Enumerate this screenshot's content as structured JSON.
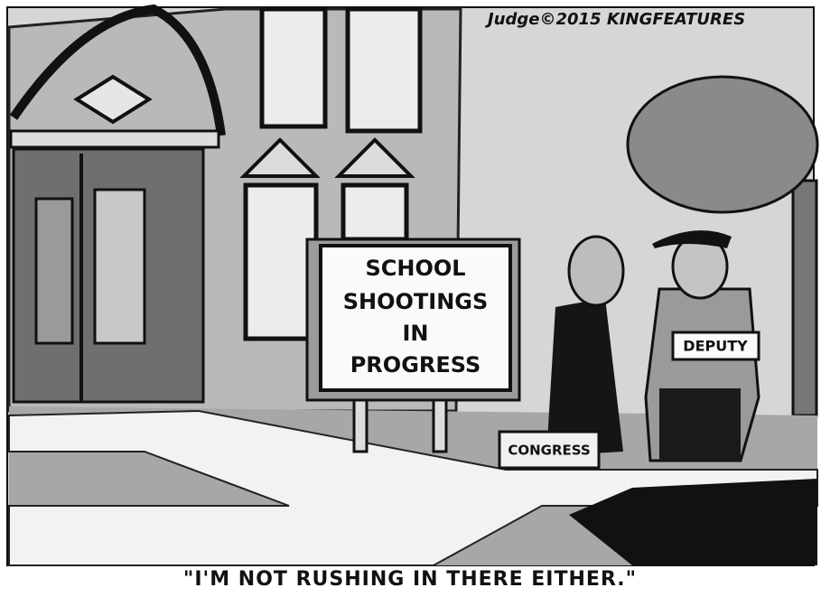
{
  "signature": "Judge©2015 KINGFEATURES",
  "sign": {
    "lines": [
      "SCHOOL",
      "SHOOTINGS",
      "IN",
      "PROGRESS"
    ]
  },
  "briefcase_label": "CONGRESS",
  "sash_label": "DEPUTY",
  "caption": "\"I'M NOT RUSHING IN THERE EITHER.\""
}
